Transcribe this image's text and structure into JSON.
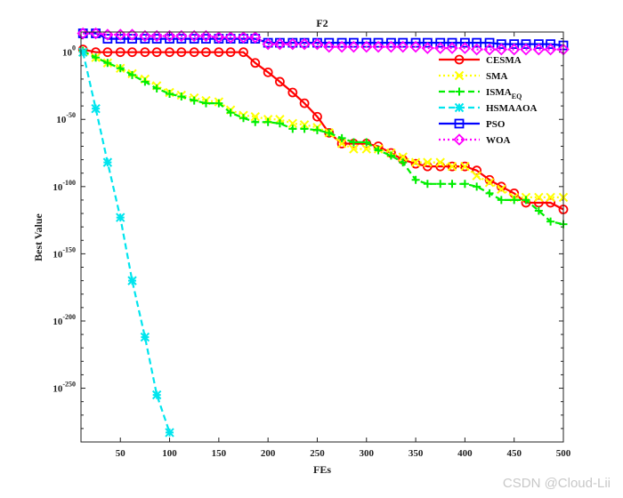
{
  "chart_data": {
    "type": "line",
    "title": "F2",
    "xlabel": "FEs",
    "ylabel": "Best Value",
    "yscale": "log",
    "xlim": [
      10,
      500
    ],
    "ylim_log10": [
      -290,
      15
    ],
    "xticks": [
      50,
      100,
      150,
      200,
      250,
      300,
      350,
      400,
      450,
      500
    ],
    "yticks": [
      {
        "value": 0,
        "base": "10",
        "exp": "0"
      },
      {
        "value": -50,
        "base": "10",
        "exp": "-50"
      },
      {
        "value": -100,
        "base": "10",
        "exp": "-100"
      },
      {
        "value": -150,
        "base": "10",
        "exp": "-150"
      },
      {
        "value": -200,
        "base": "10",
        "exp": "-200"
      },
      {
        "value": -250,
        "base": "10",
        "exp": "-250"
      }
    ],
    "legend_position": "top-right",
    "series": [
      {
        "name": "CESMA",
        "name_sub": "",
        "color": "#ff0000",
        "dash": "solid",
        "marker": "circle",
        "x": [
          12,
          25,
          37,
          50,
          62,
          75,
          87,
          100,
          112,
          125,
          137,
          150,
          162,
          175,
          187,
          200,
          212,
          225,
          237,
          250,
          262,
          275,
          287,
          300,
          312,
          325,
          337,
          350,
          362,
          375,
          387,
          400,
          412,
          425,
          437,
          450,
          462,
          475,
          487,
          500
        ],
        "log10_y": [
          2,
          0,
          0,
          0,
          0,
          0,
          0,
          0,
          0,
          0,
          0,
          0,
          0,
          0,
          -8,
          -15,
          -22,
          -30,
          -38,
          -48,
          -60,
          -68,
          -68,
          -68,
          -70,
          -75,
          -80,
          -83,
          -85,
          -85,
          -85,
          -85,
          -88,
          -95,
          -100,
          -105,
          -112,
          -112,
          -112,
          -117
        ]
      },
      {
        "name": "SMA",
        "name_sub": "",
        "color": "#ffff00",
        "dash": "dotted",
        "marker": "x",
        "x": [
          12,
          25,
          37,
          50,
          62,
          75,
          87,
          100,
          112,
          125,
          137,
          150,
          162,
          175,
          187,
          200,
          212,
          225,
          237,
          250,
          262,
          275,
          287,
          300,
          312,
          325,
          337,
          350,
          362,
          375,
          387,
          400,
          412,
          425,
          437,
          450,
          462,
          475,
          487,
          500
        ],
        "log10_y": [
          0,
          -4,
          -8,
          -12,
          -16,
          -20,
          -25,
          -30,
          -32,
          -34,
          -36,
          -37,
          -43,
          -47,
          -48,
          -50,
          -50,
          -53,
          -54,
          -56,
          -60,
          -68,
          -72,
          -72,
          -72,
          -75,
          -78,
          -82,
          -82,
          -82,
          -85,
          -85,
          -92,
          -97,
          -102,
          -108,
          -108,
          -108,
          -108,
          -108
        ]
      },
      {
        "name": "ISMA",
        "name_sub": "EQ",
        "color": "#00ee00",
        "dash": "dashed",
        "marker": "plus",
        "x": [
          12,
          25,
          37,
          50,
          62,
          75,
          87,
          100,
          112,
          125,
          137,
          150,
          162,
          175,
          187,
          200,
          212,
          225,
          237,
          250,
          262,
          275,
          287,
          300,
          312,
          325,
          337,
          350,
          362,
          375,
          387,
          400,
          412,
          425,
          437,
          450,
          462,
          475,
          487,
          500
        ],
        "log10_y": [
          1,
          -4,
          -8,
          -12,
          -17,
          -22,
          -27,
          -31,
          -33,
          -36,
          -38,
          -38,
          -45,
          -49,
          -52,
          -52,
          -53,
          -57,
          -57,
          -58,
          -60,
          -64,
          -67,
          -67,
          -73,
          -77,
          -82,
          -95,
          -98,
          -98,
          -98,
          -98,
          -100,
          -105,
          -110,
          -110,
          -110,
          -118,
          -126,
          -128
        ]
      },
      {
        "name": "HSMAAOA",
        "name_sub": "",
        "color": "#00e5ee",
        "dash": "dashed",
        "marker": "asterisk",
        "x": [
          12,
          25,
          37,
          50,
          62,
          75,
          87,
          100
        ],
        "log10_y": [
          0,
          -42,
          -82,
          -123,
          -170,
          -212,
          -255,
          -283
        ]
      },
      {
        "name": "PSO",
        "name_sub": "",
        "color": "#0000ff",
        "dash": "solid",
        "marker": "square",
        "x": [
          12,
          25,
          37,
          50,
          62,
          75,
          87,
          100,
          112,
          125,
          137,
          150,
          162,
          175,
          187,
          200,
          212,
          225,
          237,
          250,
          262,
          275,
          287,
          300,
          312,
          325,
          337,
          350,
          362,
          375,
          387,
          400,
          412,
          425,
          437,
          450,
          462,
          475,
          487,
          500
        ],
        "log10_y": [
          14,
          14,
          10,
          10,
          10,
          10,
          10,
          10,
          10,
          10,
          10,
          10,
          10,
          10,
          10,
          7,
          7,
          7,
          7,
          7,
          7,
          7,
          7,
          7,
          7,
          7,
          7,
          7,
          7,
          7,
          7,
          7,
          7,
          7,
          6,
          6,
          6,
          6,
          6,
          5
        ]
      },
      {
        "name": "WOA",
        "name_sub": "",
        "color": "#ff00ff",
        "dash": "dotted",
        "marker": "diamond",
        "x": [
          12,
          25,
          37,
          50,
          62,
          75,
          87,
          100,
          112,
          125,
          137,
          150,
          162,
          175,
          187,
          200,
          212,
          225,
          237,
          250,
          262,
          275,
          287,
          300,
          312,
          325,
          337,
          350,
          362,
          375,
          387,
          400,
          412,
          425,
          437,
          450,
          462,
          475,
          487,
          500
        ],
        "log10_y": [
          14,
          14,
          13,
          13,
          13,
          12,
          12,
          12,
          12,
          12,
          12,
          11,
          11,
          11,
          11,
          6,
          6,
          6,
          6,
          6,
          4,
          4,
          4,
          4,
          4,
          4,
          4,
          4,
          3,
          3,
          3,
          3,
          2,
          2,
          2,
          2,
          2,
          2,
          2,
          2
        ]
      }
    ]
  },
  "watermark": "CSDN @Cloud-Lii"
}
